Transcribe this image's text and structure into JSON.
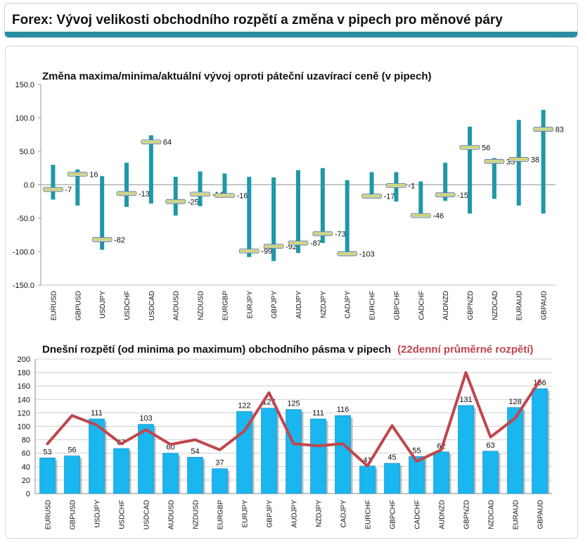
{
  "header": {
    "title": "Forex: Vývoj velikosti obchodního rozpětí a změna v pipech pro měnové páry"
  },
  "colors": {
    "accent": "#2a8ea3",
    "range_bar": "#1e98a8",
    "today_bar": "#19b6ef",
    "avg_line": "#c0464d",
    "subtitle_red": "#c0464d"
  },
  "chart_data": [
    {
      "type": "bar",
      "title": "Změna maxima/minima/aktuální vývoj oproti páteční uzavírací ceně (v pipech)",
      "ylim": [
        -150,
        150
      ],
      "yticks": [
        "150.0",
        "100.0",
        "50.0",
        "0.0",
        "-50.0",
        "-100.0",
        "-150.0"
      ],
      "grid": false,
      "categories": [
        "EURUSD",
        "GBPUSD",
        "USDJPY",
        "USDCHF",
        "USDCAD",
        "AUDUSD",
        "NZDUSD",
        "EURGBP",
        "EURJPY",
        "GBPJPY",
        "AUDJPY",
        "NZDJPY",
        "CADJPY",
        "EURCHF",
        "GBPCHF",
        "CADCHF",
        "AUDNZD",
        "GBPNZD",
        "NZDCAD",
        "EURAUD",
        "GBPAUD"
      ],
      "series": [
        {
          "name": "max",
          "values": [
            30,
            23,
            13,
            33,
            74,
            12,
            20,
            17,
            12,
            11,
            22,
            25,
            7,
            19,
            19,
            5,
            33,
            87,
            40,
            97,
            112
          ]
        },
        {
          "name": "min",
          "values": [
            -22,
            -31,
            -97,
            -33,
            -28,
            -46,
            -32,
            -18,
            -108,
            -114,
            -102,
            -87,
            -106,
            -20,
            -25,
            -48,
            -24,
            -43,
            -21,
            -31,
            -43
          ]
        },
        {
          "name": "current",
          "values": [
            -7,
            16,
            -82,
            -13,
            64,
            -25,
            -14,
            -16,
            -99,
            -92,
            -87,
            -73,
            -103,
            -17,
            -1,
            -46,
            -15,
            56,
            35,
            38,
            83
          ]
        }
      ],
      "labels": [
        "-7",
        "16",
        "-82",
        "-13",
        "64",
        "-25",
        "-14",
        "-16",
        "-99",
        "-92",
        "-87",
        "-73",
        "-103",
        "-17",
        "-1",
        "-46",
        "-15",
        "56",
        "35",
        "38",
        "83"
      ]
    },
    {
      "type": "bar",
      "title": "Dnešní rozpětí (od minima po maximum) obchodního pásma v pipech",
      "subtitle": "(22denní průměrné rozpětí)",
      "ylim": [
        0,
        200
      ],
      "yticks": [
        "200",
        "180",
        "160",
        "140",
        "120",
        "100",
        "80",
        "60",
        "40",
        "20",
        "0"
      ],
      "grid": true,
      "categories": [
        "EURUSD",
        "GBPUSD",
        "USDJPY",
        "USDCHF",
        "USDCAD",
        "AUDUSD",
        "NZDUSD",
        "EURGBP",
        "EURJPY",
        "GBPJPY",
        "AUDJPY",
        "NZDJPY",
        "CADJPY",
        "EURCHF",
        "GBPCHF",
        "CADCHF",
        "AUDNZD",
        "GBPNZD",
        "NZDCAD",
        "EURAUD",
        "GBPAUD"
      ],
      "series": [
        {
          "type": "bar",
          "values": [
            53,
            56,
            111,
            67,
            103,
            60,
            54,
            37,
            122,
            127,
            125,
            111,
            116,
            41,
            45,
            55,
            62,
            131,
            63,
            128,
            156
          ]
        },
        {
          "type": "line",
          "values": [
            74,
            116,
            102,
            74,
            95,
            73,
            80,
            65,
            93,
            150,
            74,
            71,
            74,
            41,
            101,
            48,
            65,
            180,
            84,
            112,
            168
          ]
        }
      ],
      "labels": [
        "53",
        "56",
        "111",
        "67",
        "103",
        "60",
        "54",
        "37",
        "122",
        "127",
        "125",
        "111",
        "116",
        "41",
        "45",
        "55",
        "62",
        "131",
        "63",
        "128",
        "156"
      ]
    }
  ]
}
